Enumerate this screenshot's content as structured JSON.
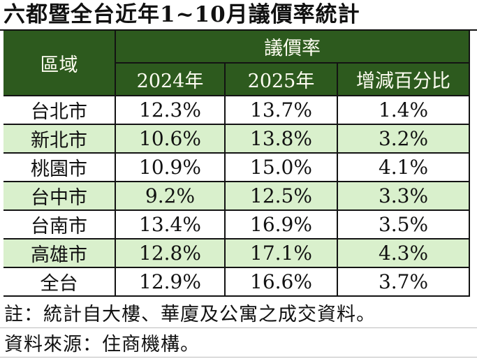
{
  "chart_data": {
    "type": "table",
    "title": "六都暨全台近年1~10月議價率統計",
    "column_group": {
      "label": "議價率"
    },
    "columns": [
      "區域",
      "2024年",
      "2025年",
      "增減百分比"
    ],
    "rows": [
      [
        "台北市",
        "12.3%",
        "13.7%",
        "1.4%"
      ],
      [
        "新北市",
        "10.6%",
        "13.8%",
        "3.2%"
      ],
      [
        "桃園市",
        "10.9%",
        "15.0%",
        "4.1%"
      ],
      [
        "台中市",
        "9.2%",
        "12.5%",
        "3.3%"
      ],
      [
        "台南市",
        "13.4%",
        "16.9%",
        "3.5%"
      ],
      [
        "高雄市",
        "12.8%",
        "17.1%",
        "4.3%"
      ],
      [
        "全台",
        "12.9%",
        "16.6%",
        "3.7%"
      ]
    ]
  },
  "notes": [
    "註：統計自大樓、華廈及公寓之成交資料。",
    "資料來源：住商機構。"
  ],
  "colors": {
    "header_bg": "#2d5a1e",
    "header_text": "#fffef2",
    "row_alt_bg": "#d9f0cc",
    "border": "#131313",
    "grid_light": "#bdbdbd",
    "text": "#111111"
  }
}
